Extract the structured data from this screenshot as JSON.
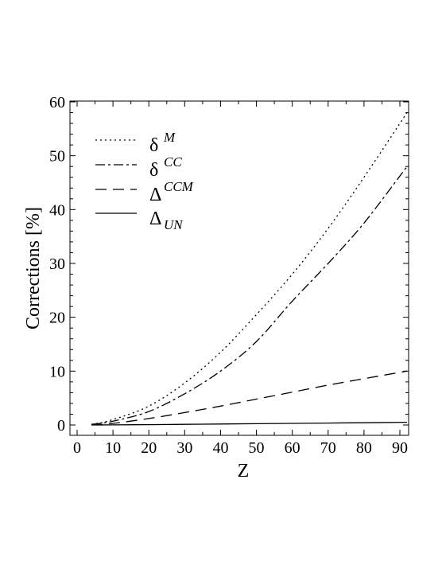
{
  "chart_data": {
    "type": "line",
    "title": "",
    "xlabel": "Z",
    "ylabel": "Corrections [%]",
    "xlim": [
      0,
      95
    ],
    "ylim": [
      0,
      60
    ],
    "xticks": [
      0,
      10,
      20,
      30,
      40,
      50,
      60,
      70,
      80,
      90
    ],
    "yticks": [
      0,
      10,
      20,
      30,
      40,
      50,
      60
    ],
    "grid": false,
    "legend_position": "top-left",
    "series": [
      {
        "name": "δ",
        "sup": "M",
        "sub": "",
        "style": "dotted",
        "x": [
          4,
          10,
          20,
          30,
          40,
          50,
          60,
          70,
          80,
          92
        ],
        "y": [
          0.1,
          1.0,
          3.5,
          7.8,
          13.5,
          20.5,
          28.0,
          36.5,
          46.0,
          58.0
        ]
      },
      {
        "name": "δ",
        "sup": "CC",
        "sub": "",
        "style": "dashdot",
        "x": [
          4,
          10,
          20,
          30,
          40,
          50,
          60,
          70,
          80,
          92
        ],
        "y": [
          0.1,
          0.7,
          2.5,
          5.8,
          10.0,
          15.5,
          23.0,
          30.0,
          37.5,
          48.0
        ]
      },
      {
        "name": "Δ",
        "sup": "CCM",
        "sub": "",
        "style": "dashed",
        "x": [
          4,
          10,
          20,
          30,
          40,
          50,
          60,
          70,
          80,
          92
        ],
        "y": [
          0.05,
          0.3,
          1.2,
          2.3,
          3.5,
          4.8,
          6.1,
          7.4,
          8.6,
          10.0
        ]
      },
      {
        "name": "Δ",
        "sup": "",
        "sub": "UN",
        "style": "solid",
        "x": [
          4,
          10,
          20,
          30,
          40,
          50,
          60,
          70,
          80,
          92
        ],
        "y": [
          0.0,
          0.02,
          0.06,
          0.12,
          0.18,
          0.24,
          0.3,
          0.36,
          0.42,
          0.5
        ]
      }
    ]
  }
}
